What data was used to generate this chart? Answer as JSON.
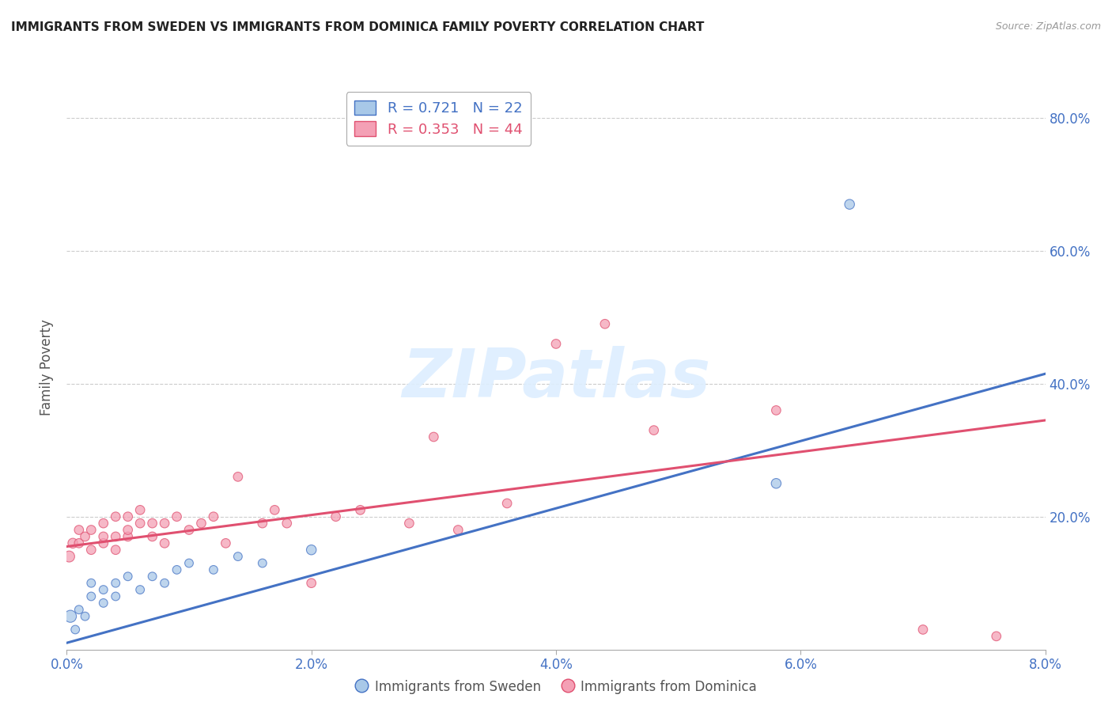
{
  "title": "IMMIGRANTS FROM SWEDEN VS IMMIGRANTS FROM DOMINICA FAMILY POVERTY CORRELATION CHART",
  "source": "Source: ZipAtlas.com",
  "xlabel_sweden": "Immigrants from Sweden",
  "xlabel_dominica": "Immigrants from Dominica",
  "ylabel": "Family Poverty",
  "xlim": [
    0.0,
    0.08
  ],
  "ylim": [
    0.0,
    0.85
  ],
  "xticks": [
    0.0,
    0.02,
    0.04,
    0.06,
    0.08
  ],
  "yticks": [
    0.0,
    0.2,
    0.4,
    0.6,
    0.8
  ],
  "ytick_labels": [
    "",
    "20.0%",
    "40.0%",
    "60.0%",
    "80.0%"
  ],
  "xtick_labels": [
    "0.0%",
    "2.0%",
    "4.0%",
    "6.0%",
    "8.0%"
  ],
  "legend_R_sweden": "0.721",
  "legend_N_sweden": "22",
  "legend_R_dominica": "0.353",
  "legend_N_dominica": "44",
  "color_sweden": "#a8c8e8",
  "color_dominica": "#f4a0b5",
  "color_line_sweden": "#4472c4",
  "color_line_dominica": "#e05070",
  "color_tick": "#4472c4",
  "watermark_color": "#ddeeff",
  "watermark": "ZIPatlas",
  "sweden_x": [
    0.0003,
    0.0007,
    0.001,
    0.0015,
    0.002,
    0.002,
    0.003,
    0.003,
    0.004,
    0.004,
    0.005,
    0.006,
    0.007,
    0.008,
    0.009,
    0.01,
    0.012,
    0.014,
    0.016,
    0.02,
    0.058,
    0.064
  ],
  "sweden_y": [
    0.05,
    0.03,
    0.06,
    0.05,
    0.08,
    0.1,
    0.07,
    0.09,
    0.08,
    0.1,
    0.11,
    0.09,
    0.11,
    0.1,
    0.12,
    0.13,
    0.12,
    0.14,
    0.13,
    0.15,
    0.25,
    0.67
  ],
  "sweden_size": [
    120,
    60,
    60,
    60,
    60,
    60,
    60,
    60,
    60,
    60,
    60,
    60,
    60,
    60,
    60,
    60,
    60,
    60,
    60,
    80,
    80,
    80
  ],
  "dominica_x": [
    0.0002,
    0.0005,
    0.001,
    0.001,
    0.0015,
    0.002,
    0.002,
    0.003,
    0.003,
    0.003,
    0.004,
    0.004,
    0.004,
    0.005,
    0.005,
    0.005,
    0.006,
    0.006,
    0.007,
    0.007,
    0.008,
    0.008,
    0.009,
    0.01,
    0.011,
    0.012,
    0.013,
    0.014,
    0.016,
    0.017,
    0.018,
    0.02,
    0.022,
    0.024,
    0.028,
    0.03,
    0.032,
    0.036,
    0.04,
    0.044,
    0.048,
    0.058,
    0.07,
    0.076
  ],
  "dominica_y": [
    0.14,
    0.16,
    0.16,
    0.18,
    0.17,
    0.15,
    0.18,
    0.16,
    0.17,
    0.19,
    0.15,
    0.17,
    0.2,
    0.17,
    0.18,
    0.2,
    0.19,
    0.21,
    0.17,
    0.19,
    0.16,
    0.19,
    0.2,
    0.18,
    0.19,
    0.2,
    0.16,
    0.26,
    0.19,
    0.21,
    0.19,
    0.1,
    0.2,
    0.21,
    0.19,
    0.32,
    0.18,
    0.22,
    0.46,
    0.49,
    0.33,
    0.36,
    0.03,
    0.02
  ],
  "dominica_size": [
    100,
    80,
    70,
    70,
    70,
    70,
    70,
    70,
    70,
    70,
    70,
    70,
    70,
    70,
    70,
    70,
    70,
    70,
    70,
    70,
    70,
    70,
    70,
    70,
    70,
    70,
    70,
    70,
    70,
    70,
    70,
    70,
    70,
    70,
    70,
    70,
    70,
    70,
    70,
    70,
    70,
    70,
    70,
    70
  ],
  "sweden_line_x": [
    0.0,
    0.08
  ],
  "sweden_line_y": [
    0.01,
    0.415
  ],
  "dominica_line_x": [
    0.0,
    0.08
  ],
  "dominica_line_y": [
    0.155,
    0.345
  ]
}
